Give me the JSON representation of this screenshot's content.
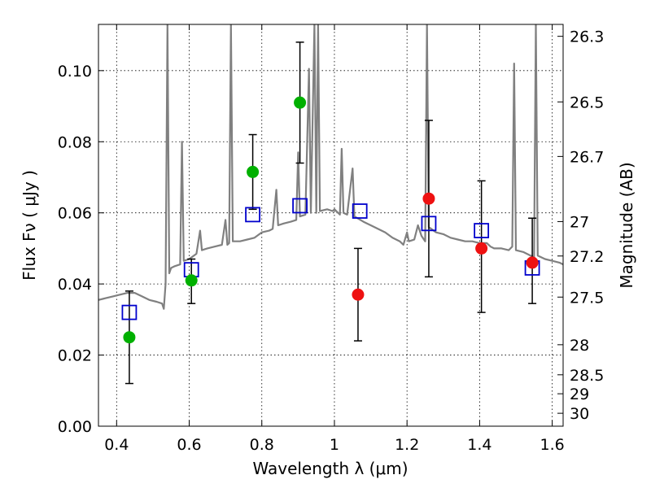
{
  "chart_data": {
    "type": "scatter",
    "xlabel": "Wavelength  λ (μm)",
    "ylabel": "Flux  Fν  ( μJy )",
    "y2label": "Magnitude (AB)",
    "xlim": [
      0.35,
      1.63
    ],
    "ylim": [
      0.0,
      0.113
    ],
    "grid": true,
    "x_ticks": [
      "0.4",
      "0.6",
      "0.8",
      "1",
      "1.2",
      "1.4",
      "1.6"
    ],
    "y_ticks": [
      "0.00",
      "0.02",
      "0.04",
      "0.06",
      "0.08",
      "0.10"
    ],
    "y2_ticks": [
      {
        "label": "26.3",
        "mag": 26.3
      },
      {
        "label": "26.5",
        "mag": 26.5
      },
      {
        "label": "26.7",
        "mag": 26.7
      },
      {
        "label": "27",
        "mag": 27.0
      },
      {
        "label": "27.2",
        "mag": 27.2
      },
      {
        "label": "27.5",
        "mag": 27.5
      },
      {
        "label": "28",
        "mag": 28.0
      },
      {
        "label": "28.5",
        "mag": 28.5
      },
      {
        "label": "29",
        "mag": 29.0
      },
      {
        "label": "30",
        "mag": 30.0
      }
    ],
    "colors": {
      "spectrum": "#808080",
      "detection": "#00b000",
      "upper": "#ee1111",
      "model": "#0000cc",
      "errorbar": "#000000"
    },
    "observed_green": [
      {
        "x": 0.435,
        "y": 0.025,
        "err_low": 0.012,
        "err_high": 0.038
      },
      {
        "x": 0.606,
        "y": 0.041,
        "err_low": 0.0345,
        "err_high": 0.047
      },
      {
        "x": 0.775,
        "y": 0.0715,
        "err_low": 0.061,
        "err_high": 0.082
      },
      {
        "x": 0.905,
        "y": 0.091,
        "err_low": 0.074,
        "err_high": 0.108
      }
    ],
    "observed_red": [
      {
        "x": 1.065,
        "y": 0.037,
        "err_low": 0.024,
        "err_high": 0.05
      },
      {
        "x": 1.26,
        "y": 0.064,
        "err_low": 0.042,
        "err_high": 0.086
      },
      {
        "x": 1.405,
        "y": 0.05,
        "err_low": 0.032,
        "err_high": 0.069
      },
      {
        "x": 1.545,
        "y": 0.046,
        "err_low": 0.0345,
        "err_high": 0.0585
      }
    ],
    "model_squares": [
      {
        "x": 0.435,
        "y": 0.032
      },
      {
        "x": 0.606,
        "y": 0.044
      },
      {
        "x": 0.775,
        "y": 0.0595
      },
      {
        "x": 0.905,
        "y": 0.062
      },
      {
        "x": 1.07,
        "y": 0.0605
      },
      {
        "x": 1.26,
        "y": 0.057
      },
      {
        "x": 1.405,
        "y": 0.055
      },
      {
        "x": 1.545,
        "y": 0.0445
      }
    ],
    "spectrum": [
      [
        0.35,
        0.0355
      ],
      [
        0.37,
        0.036
      ],
      [
        0.39,
        0.0365
      ],
      [
        0.41,
        0.037
      ],
      [
        0.43,
        0.0375
      ],
      [
        0.45,
        0.0375
      ],
      [
        0.47,
        0.0365
      ],
      [
        0.49,
        0.0355
      ],
      [
        0.51,
        0.035
      ],
      [
        0.525,
        0.0345
      ],
      [
        0.53,
        0.033
      ],
      [
        0.535,
        0.04
      ],
      [
        0.54,
        0.113
      ],
      [
        0.545,
        0.043
      ],
      [
        0.55,
        0.0445
      ],
      [
        0.56,
        0.045
      ],
      [
        0.575,
        0.0455
      ],
      [
        0.58,
        0.08
      ],
      [
        0.585,
        0.0465
      ],
      [
        0.6,
        0.047
      ],
      [
        0.62,
        0.0485
      ],
      [
        0.63,
        0.055
      ],
      [
        0.635,
        0.0495
      ],
      [
        0.65,
        0.05
      ],
      [
        0.67,
        0.0505
      ],
      [
        0.69,
        0.051
      ],
      [
        0.7,
        0.058
      ],
      [
        0.705,
        0.051
      ],
      [
        0.71,
        0.0515
      ],
      [
        0.715,
        0.113
      ],
      [
        0.72,
        0.052
      ],
      [
        0.74,
        0.052
      ],
      [
        0.76,
        0.0525
      ],
      [
        0.78,
        0.053
      ],
      [
        0.8,
        0.0545
      ],
      [
        0.82,
        0.055
      ],
      [
        0.83,
        0.0555
      ],
      [
        0.84,
        0.0665
      ],
      [
        0.845,
        0.0565
      ],
      [
        0.86,
        0.057
      ],
      [
        0.88,
        0.0575
      ],
      [
        0.895,
        0.058
      ],
      [
        0.9,
        0.077
      ],
      [
        0.905,
        0.059
      ],
      [
        0.92,
        0.0595
      ],
      [
        0.93,
        0.1005
      ],
      [
        0.935,
        0.06
      ],
      [
        0.945,
        0.113
      ],
      [
        0.95,
        0.06
      ],
      [
        0.955,
        0.113
      ],
      [
        0.96,
        0.0605
      ],
      [
        0.98,
        0.061
      ],
      [
        0.995,
        0.0605
      ],
      [
        1.0,
        0.061
      ],
      [
        1.015,
        0.0595
      ],
      [
        1.02,
        0.078
      ],
      [
        1.025,
        0.06
      ],
      [
        1.035,
        0.0595
      ],
      [
        1.05,
        0.0725
      ],
      [
        1.055,
        0.059
      ],
      [
        1.08,
        0.0575
      ],
      [
        1.1,
        0.0565
      ],
      [
        1.12,
        0.0555
      ],
      [
        1.14,
        0.0545
      ],
      [
        1.16,
        0.053
      ],
      [
        1.18,
        0.052
      ],
      [
        1.19,
        0.051
      ],
      [
        1.2,
        0.0545
      ],
      [
        1.205,
        0.052
      ],
      [
        1.22,
        0.0525
      ],
      [
        1.23,
        0.0565
      ],
      [
        1.24,
        0.0535
      ],
      [
        1.25,
        0.052
      ],
      [
        1.255,
        0.113
      ],
      [
        1.26,
        0.056
      ],
      [
        1.28,
        0.0545
      ],
      [
        1.3,
        0.054
      ],
      [
        1.32,
        0.053
      ],
      [
        1.34,
        0.0525
      ],
      [
        1.36,
        0.052
      ],
      [
        1.38,
        0.052
      ],
      [
        1.4,
        0.0515
      ],
      [
        1.42,
        0.0515
      ],
      [
        1.43,
        0.0505
      ],
      [
        1.44,
        0.05
      ],
      [
        1.46,
        0.05
      ],
      [
        1.48,
        0.0495
      ],
      [
        1.49,
        0.0505
      ],
      [
        1.495,
        0.102
      ],
      [
        1.5,
        0.0495
      ],
      [
        1.52,
        0.049
      ],
      [
        1.54,
        0.048
      ],
      [
        1.55,
        0.0475
      ],
      [
        1.555,
        0.113
      ],
      [
        1.56,
        0.048
      ],
      [
        1.58,
        0.047
      ],
      [
        1.6,
        0.0465
      ],
      [
        1.62,
        0.046
      ],
      [
        1.63,
        0.0455
      ]
    ]
  }
}
